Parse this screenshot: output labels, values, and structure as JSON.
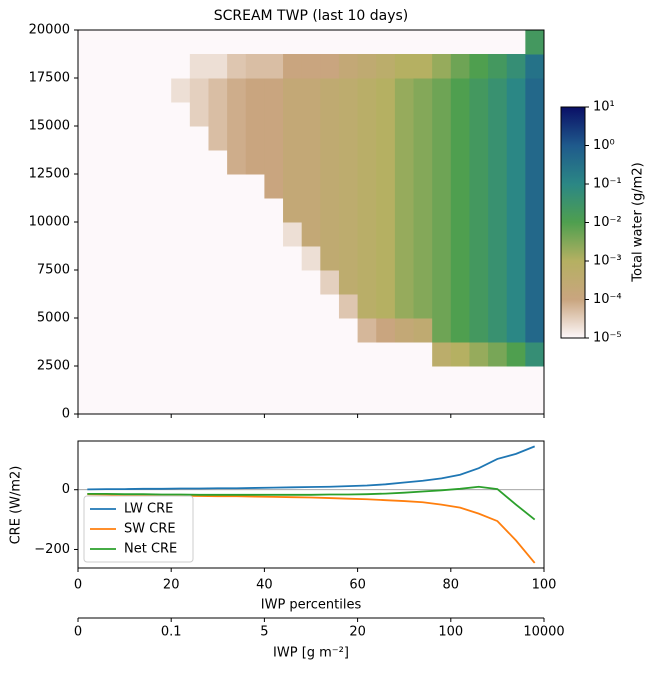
{
  "chart_data": [
    {
      "type": "heatmap",
      "title": "SCREAM TWP (last 10 days)",
      "xlim": [
        0,
        100
      ],
      "xticks": [
        0,
        20,
        40,
        60,
        80,
        100
      ],
      "ylim": [
        0,
        20000
      ],
      "yticks": [
        0,
        2500,
        5000,
        7500,
        10000,
        12500,
        15000,
        17500,
        20000
      ],
      "x_edges": [
        0,
        4,
        8,
        12,
        16,
        20,
        24,
        28,
        32,
        36,
        40,
        44,
        48,
        52,
        56,
        60,
        64,
        68,
        72,
        76,
        80,
        84,
        88,
        92,
        96,
        100
      ],
      "y_edges": [
        0,
        1250,
        2500,
        3750,
        5000,
        6250,
        7500,
        8750,
        10000,
        11250,
        12500,
        13750,
        15000,
        16250,
        17500,
        18750,
        20000
      ],
      "z": [
        [
          null,
          null,
          null,
          null,
          null,
          null,
          null,
          null,
          null,
          null,
          null,
          null,
          null,
          null,
          null,
          null,
          null,
          null,
          null,
          null,
          null,
          null,
          null,
          null,
          null
        ],
        [
          null,
          null,
          null,
          null,
          null,
          null,
          null,
          null,
          null,
          null,
          null,
          null,
          null,
          null,
          null,
          null,
          null,
          null,
          null,
          null,
          null,
          null,
          null,
          null,
          null
        ],
        [
          null,
          null,
          null,
          null,
          null,
          null,
          null,
          null,
          null,
          null,
          null,
          null,
          null,
          null,
          null,
          null,
          null,
          null,
          null,
          0.0005,
          0.001,
          0.002,
          0.004,
          0.01,
          0.05
        ],
        [
          null,
          null,
          null,
          null,
          null,
          null,
          null,
          null,
          null,
          null,
          null,
          null,
          null,
          null,
          null,
          6e-05,
          0.0001,
          0.0002,
          0.0003,
          0.005,
          0.01,
          0.02,
          0.04,
          0.1,
          0.5
        ],
        [
          null,
          null,
          null,
          null,
          null,
          null,
          null,
          null,
          null,
          null,
          null,
          null,
          null,
          null,
          4e-05,
          0.0006,
          0.001,
          0.002,
          0.003,
          0.005,
          0.01,
          0.02,
          0.04,
          0.1,
          0.5
        ],
        [
          null,
          null,
          null,
          null,
          null,
          null,
          null,
          null,
          null,
          null,
          null,
          null,
          null,
          3e-05,
          0.0004,
          0.0006,
          0.001,
          0.002,
          0.003,
          0.005,
          0.01,
          0.02,
          0.04,
          0.1,
          0.5
        ],
        [
          null,
          null,
          null,
          null,
          null,
          null,
          null,
          null,
          null,
          null,
          null,
          null,
          2e-05,
          0.0003,
          0.0004,
          0.0006,
          0.001,
          0.002,
          0.003,
          0.005,
          0.01,
          0.02,
          0.04,
          0.1,
          0.5
        ],
        [
          null,
          null,
          null,
          null,
          null,
          null,
          null,
          null,
          null,
          null,
          null,
          2e-05,
          0.0002,
          0.0003,
          0.0004,
          0.0006,
          0.001,
          0.002,
          0.003,
          0.005,
          0.01,
          0.02,
          0.04,
          0.1,
          0.5
        ],
        [
          null,
          null,
          null,
          null,
          null,
          null,
          null,
          null,
          null,
          null,
          1e-05,
          0.0002,
          0.0002,
          0.0003,
          0.0004,
          0.0006,
          0.001,
          0.002,
          0.003,
          0.005,
          0.01,
          0.02,
          0.04,
          0.1,
          0.5
        ],
        [
          null,
          null,
          null,
          null,
          null,
          null,
          null,
          null,
          1e-05,
          1e-05,
          0.0001,
          0.0002,
          0.0002,
          0.0003,
          0.0004,
          0.0006,
          0.001,
          0.002,
          0.003,
          0.005,
          0.01,
          0.02,
          0.04,
          0.1,
          0.5
        ],
        [
          null,
          null,
          null,
          null,
          null,
          null,
          null,
          1e-05,
          8e-05,
          0.0001,
          0.0001,
          0.0002,
          0.0002,
          0.0003,
          0.0004,
          0.0006,
          0.001,
          0.002,
          0.003,
          0.005,
          0.01,
          0.02,
          0.04,
          0.1,
          0.5
        ],
        [
          null,
          null,
          null,
          null,
          null,
          null,
          1e-05,
          5e-05,
          8e-05,
          0.0001,
          0.0001,
          0.0002,
          0.0002,
          0.0003,
          0.0004,
          0.0006,
          0.001,
          0.002,
          0.003,
          0.005,
          0.01,
          0.02,
          0.04,
          0.1,
          0.5
        ],
        [
          null,
          null,
          null,
          null,
          null,
          1e-05,
          3e-05,
          5e-05,
          8e-05,
          0.0001,
          0.0001,
          0.0002,
          0.0002,
          0.0003,
          0.0004,
          0.0006,
          0.001,
          0.002,
          0.003,
          0.005,
          0.01,
          0.02,
          0.04,
          0.1,
          0.5
        ],
        [
          null,
          null,
          null,
          null,
          1e-05,
          2e-05,
          3e-05,
          5e-05,
          8e-05,
          0.0001,
          0.0001,
          0.0002,
          0.0002,
          0.0003,
          0.0004,
          0.0006,
          0.001,
          0.002,
          0.003,
          0.005,
          0.01,
          0.02,
          0.04,
          0.1,
          0.5
        ],
        [
          null,
          null,
          null,
          null,
          1e-05,
          1e-05,
          2e-05,
          2e-05,
          4e-05,
          5e-05,
          5e-05,
          0.0001,
          0.0001,
          0.0001,
          0.0002,
          0.0003,
          0.0005,
          0.001,
          0.001,
          0.002,
          0.005,
          0.01,
          0.02,
          0.05,
          0.3
        ],
        [
          null,
          null,
          null,
          null,
          null,
          null,
          null,
          null,
          null,
          null,
          null,
          null,
          null,
          null,
          null,
          null,
          null,
          null,
          null,
          null,
          null,
          null,
          null,
          null,
          0.02
        ]
      ],
      "colorbar": {
        "label": "Total water (g/m2)",
        "log_scale": true,
        "lim": [
          1e-05,
          10
        ],
        "ticks": [
          {
            "value": 1e-05,
            "label": "10⁻⁵"
          },
          {
            "value": 0.0001,
            "label": "10⁻⁴"
          },
          {
            "value": 0.001,
            "label": "10⁻³"
          },
          {
            "value": 0.01,
            "label": "10⁻²"
          },
          {
            "value": 0.1,
            "label": "10⁻¹"
          },
          {
            "value": 1,
            "label": "10⁰"
          },
          {
            "value": 10,
            "label": "10¹"
          }
        ],
        "colors": [
          "#fdf8fa",
          "#c9a57f",
          "#b5b062",
          "#4f9f4f",
          "#2b8785",
          "#1f5a8c",
          "#0a0f66"
        ]
      }
    },
    {
      "type": "line",
      "xlabel": "IWP percentiles",
      "ylabel": "CRE (W/m2)",
      "xlim": [
        0,
        100
      ],
      "xticks": [
        0,
        20,
        40,
        60,
        80,
        100
      ],
      "ylim": [
        -262,
        163
      ],
      "yticks": [
        {
          "value": -200,
          "label": "−200"
        },
        0
      ],
      "hline": 0,
      "x": [
        2,
        6,
        10,
        14,
        18,
        22,
        26,
        30,
        34,
        38,
        42,
        46,
        50,
        54,
        58,
        62,
        66,
        70,
        74,
        78,
        82,
        86,
        90,
        94,
        98
      ],
      "series": [
        {
          "name": "LW CRE",
          "color": "#1f77b4",
          "values": [
            1,
            2,
            2,
            3,
            3,
            4,
            4,
            5,
            5,
            6,
            7,
            8,
            9,
            10,
            12,
            14,
            18,
            24,
            30,
            38,
            50,
            72,
            103,
            120,
            145
          ]
        },
        {
          "name": "SW CRE",
          "color": "#ff7f0e",
          "values": [
            -15,
            -16,
            -17,
            -18,
            -19,
            -20,
            -21,
            -22,
            -22,
            -23,
            -24,
            -25,
            -26,
            -28,
            -30,
            -32,
            -35,
            -38,
            -42,
            -50,
            -60,
            -80,
            -105,
            -170,
            -245
          ]
        },
        {
          "name": "Net CRE",
          "color": "#2ca02c",
          "values": [
            -14,
            -14,
            -15,
            -15,
            -16,
            -16,
            -17,
            -17,
            -17,
            -17,
            -17,
            -17,
            -17,
            -16,
            -16,
            -15,
            -13,
            -10,
            -6,
            -2,
            3,
            10,
            2,
            -50,
            -100
          ]
        }
      ],
      "legend": "lower left",
      "x2label": "IWP [g m⁻²]",
      "x2ticks": [
        {
          "value": 0,
          "label": "0"
        },
        {
          "value": 20,
          "label": "0.1"
        },
        {
          "value": 40,
          "label": "5"
        },
        {
          "value": 60,
          "label": "20"
        },
        {
          "value": 80,
          "label": "100"
        },
        {
          "value": 100,
          "label": "10000"
        }
      ]
    }
  ]
}
